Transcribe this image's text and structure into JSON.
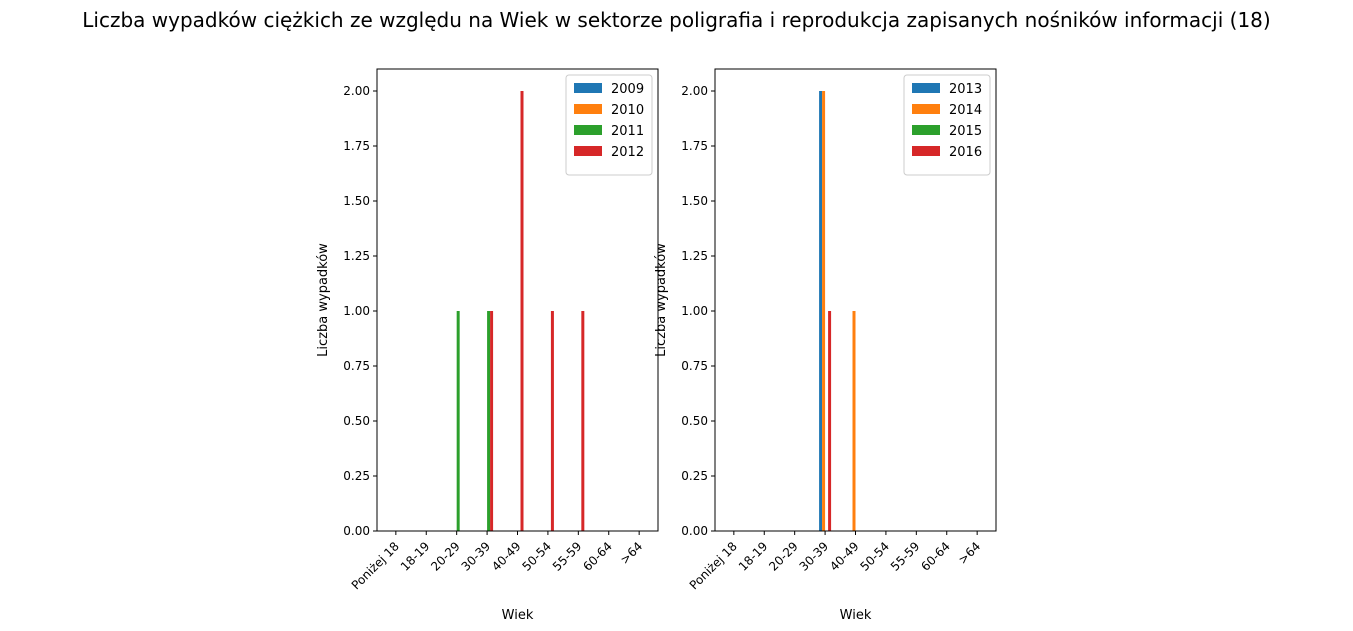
{
  "figure": {
    "title": "Liczba wypadków ciężkich ze względu na Wiek w sektorze poligrafia i reprodukcja zapisanych nośników informacji  (18)"
  },
  "chart_data": [
    {
      "type": "bar",
      "xlabel": "Wiek",
      "ylabel": "Liczba wypadków",
      "ylim": [
        0,
        2.1
      ],
      "yticks": [
        "0.00",
        "0.25",
        "0.50",
        "0.75",
        "1.00",
        "1.25",
        "1.50",
        "1.75",
        "2.00"
      ],
      "legend_position": "top-right",
      "categories": [
        "Poniżej 18",
        "18-19",
        "20-29",
        "30-39",
        "40-49",
        "50-54",
        "55-59",
        "60-64",
        ">64"
      ],
      "series": [
        {
          "name": "2009",
          "color": "#1f77b4",
          "values": [
            0,
            0,
            0,
            0,
            0,
            0,
            0,
            0,
            0
          ]
        },
        {
          "name": "2010",
          "color": "#ff7f0e",
          "values": [
            0,
            0,
            0,
            0,
            0,
            0,
            0,
            0,
            0
          ]
        },
        {
          "name": "2011",
          "color": "#2ca02c",
          "values": [
            0,
            0,
            1,
            1,
            0,
            0,
            0,
            0,
            0
          ]
        },
        {
          "name": "2012",
          "color": "#d62728",
          "values": [
            0,
            0,
            0,
            1,
            2,
            1,
            1,
            0,
            0
          ]
        }
      ]
    },
    {
      "type": "bar",
      "xlabel": "Wiek",
      "ylabel": "Liczba wypadków",
      "ylim": [
        0,
        2.1
      ],
      "yticks": [
        "0.00",
        "0.25",
        "0.50",
        "0.75",
        "1.00",
        "1.25",
        "1.50",
        "1.75",
        "2.00"
      ],
      "legend_position": "top-right",
      "categories": [
        "Poniżej 18",
        "18-19",
        "20-29",
        "30-39",
        "40-49",
        "50-54",
        "55-59",
        "60-64",
        ">64"
      ],
      "series": [
        {
          "name": "2013",
          "color": "#1f77b4",
          "values": [
            0,
            0,
            0,
            2,
            0,
            0,
            0,
            0,
            0
          ]
        },
        {
          "name": "2014",
          "color": "#ff7f0e",
          "values": [
            0,
            0,
            0,
            2,
            1,
            0,
            0,
            0,
            0
          ]
        },
        {
          "name": "2015",
          "color": "#2ca02c",
          "values": [
            0,
            0,
            0,
            0,
            0,
            0,
            0,
            0,
            0
          ]
        },
        {
          "name": "2016",
          "color": "#d62728",
          "values": [
            0,
            0,
            0,
            1,
            0,
            0,
            0,
            0,
            0
          ]
        }
      ]
    }
  ]
}
